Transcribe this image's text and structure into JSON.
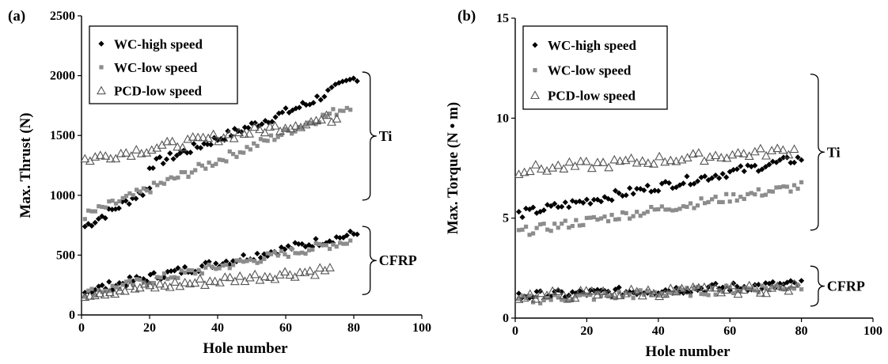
{
  "chart_data": [
    {
      "panel": "(a)",
      "type": "scatter",
      "xlabel": "Hole number",
      "ylabel": "Max. Thrust (N)",
      "xlim": [
        0,
        100
      ],
      "ylim": [
        0,
        2500
      ],
      "xticks": [
        0,
        20,
        40,
        60,
        80,
        100
      ],
      "yticks": [
        0,
        500,
        1000,
        1500,
        2000,
        2500
      ],
      "legend_position": "top-left",
      "annotations": [
        "Ti",
        "CFRP"
      ],
      "brackets": [
        {
          "label": "Ti",
          "y_top": 2030,
          "y_bottom": 960
        },
        {
          "label": "CFRP",
          "y_top": 740,
          "y_bottom": 170
        }
      ],
      "series": [
        {
          "name": "WC-high speed",
          "marker": "diamond",
          "color": "#000000",
          "groups": [
            {
              "x_start": 1,
              "x_end": 20,
              "y_start": 740,
              "y_end": 1060,
              "n": 20
            },
            {
              "x_start": 20,
              "x_end": 66,
              "y_start": 1250,
              "y_end": 1760,
              "n": 47
            },
            {
              "x_start": 66,
              "x_end": 81,
              "y_start": 1760,
              "y_end": 1990,
              "n": 15
            },
            {
              "x_start": 1,
              "x_end": 81,
              "y_start": 200,
              "y_end": 680,
              "n": 80
            }
          ]
        },
        {
          "name": "WC-low speed",
          "marker": "square",
          "color": "#8c8c8c",
          "groups": [
            {
              "x_start": 1,
              "x_end": 79,
              "y_start": 830,
              "y_end": 1750,
              "n": 78
            },
            {
              "x_start": 1,
              "x_end": 79,
              "y_start": 180,
              "y_end": 620,
              "n": 78
            }
          ]
        },
        {
          "name": "PCD-low speed",
          "marker": "triangle",
          "color": "#555555",
          "groups": [
            {
              "x_start": 1,
              "x_end": 75,
              "y_start": 1300,
              "y_end": 1650,
              "n": 50
            },
            {
              "x_start": 1,
              "x_end": 73,
              "y_start": 180,
              "y_end": 380,
              "n": 50
            }
          ]
        }
      ]
    },
    {
      "panel": "(b)",
      "type": "scatter",
      "xlabel": "Hole number",
      "ylabel": "Max. Torque (N • m)",
      "xlim": [
        0,
        100
      ],
      "ylim": [
        0,
        15
      ],
      "xticks": [
        0,
        20,
        40,
        60,
        80,
        100
      ],
      "yticks": [
        0,
        5,
        10,
        15
      ],
      "legend_position": "top-left",
      "annotations": [
        "Ti",
        "CFRP"
      ],
      "brackets": [
        {
          "label": "Ti",
          "y_top": 12.2,
          "y_bottom": 4.4
        },
        {
          "label": "CFRP",
          "y_top": 2.6,
          "y_bottom": 0.6
        }
      ],
      "series": [
        {
          "name": "WC-high speed",
          "marker": "diamond",
          "color": "#000000",
          "groups": [
            {
              "x_start": 1,
              "x_end": 80,
              "y_start": 5.2,
              "y_end": 8.0,
              "n": 80
            },
            {
              "x_start": 1,
              "x_end": 80,
              "y_start": 1.1,
              "y_end": 1.7,
              "n": 80
            }
          ]
        },
        {
          "name": "WC-low speed",
          "marker": "square",
          "color": "#8c8c8c",
          "groups": [
            {
              "x_start": 1,
              "x_end": 80,
              "y_start": 4.3,
              "y_end": 6.6,
              "n": 80
            },
            {
              "x_start": 1,
              "x_end": 80,
              "y_start": 0.9,
              "y_end": 1.6,
              "n": 80
            }
          ]
        },
        {
          "name": "PCD-low speed",
          "marker": "triangle",
          "color": "#555555",
          "groups": [
            {
              "x_start": 1,
              "x_end": 78,
              "y_start": 7.4,
              "y_end": 8.4,
              "n": 50
            },
            {
              "x_start": 1,
              "x_end": 78,
              "y_start": 1.1,
              "y_end": 1.5,
              "n": 50
            }
          ]
        }
      ]
    }
  ]
}
